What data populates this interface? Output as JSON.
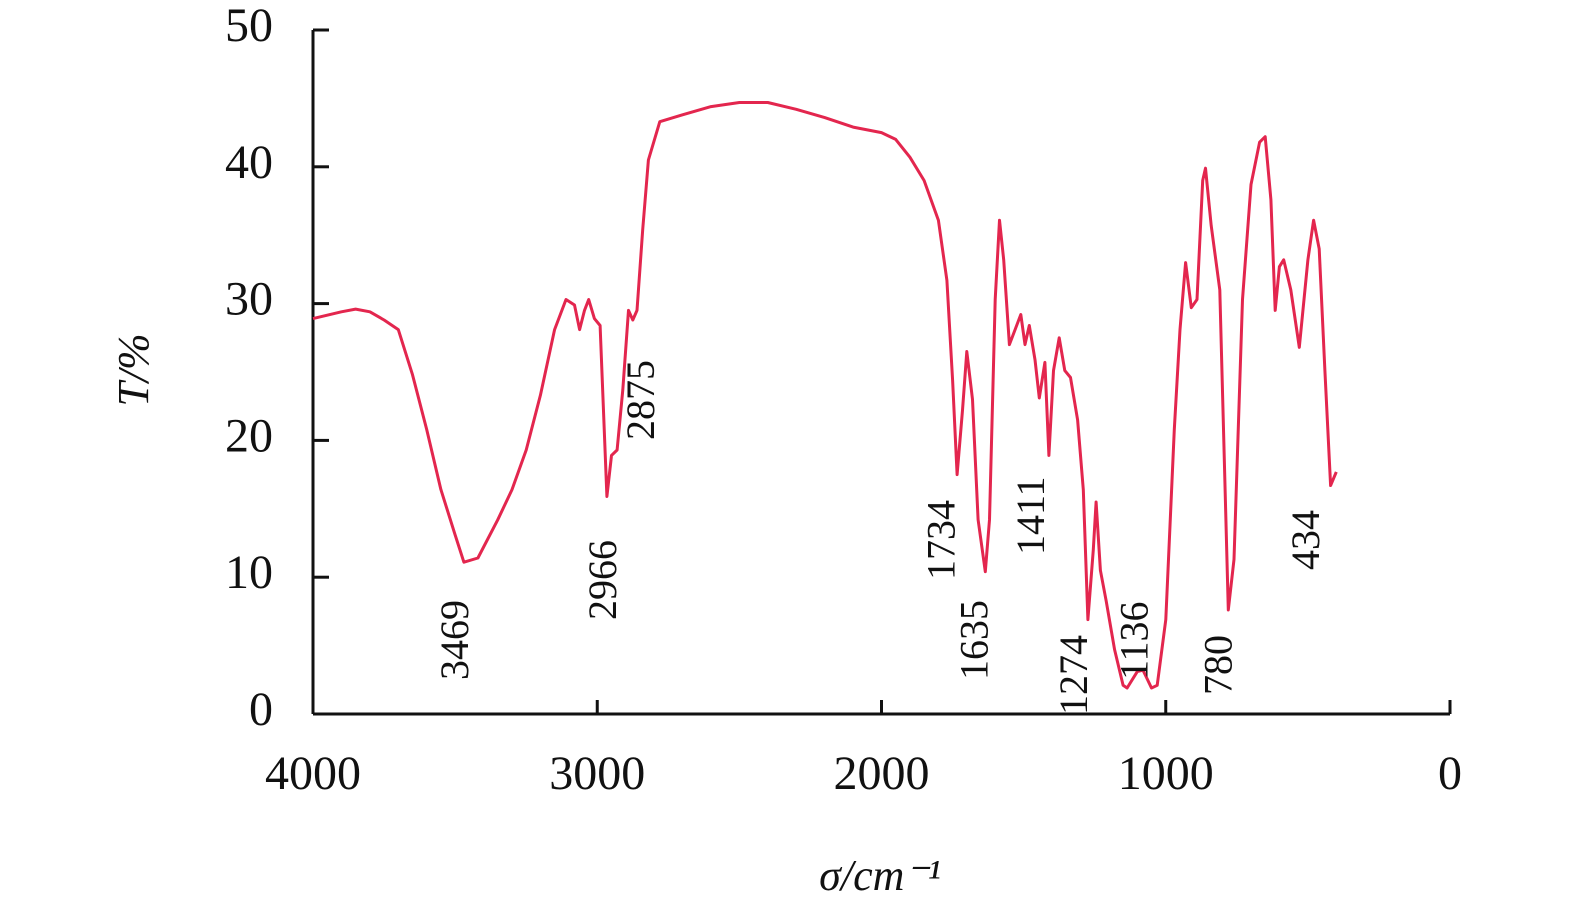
{
  "chart_data": {
    "type": "line",
    "xlabel": "σ/cm⁻¹",
    "ylabel": "T/%",
    "xlim": [
      4000,
      0
    ],
    "xticks": [
      4000,
      3000,
      2000,
      1000,
      0
    ],
    "ylim": [
      0,
      50
    ],
    "yticks": [
      0,
      10,
      20,
      30,
      40,
      50
    ],
    "color": "#e3264e",
    "x": [
      4000,
      3900,
      3850,
      3800,
      3750,
      3700,
      3650,
      3600,
      3550,
      3500,
      3469,
      3420,
      3350,
      3300,
      3250,
      3200,
      3150,
      3110,
      3080,
      3062,
      3045,
      3030,
      3010,
      2990,
      2966,
      2950,
      2930,
      2910,
      2890,
      2875,
      2860,
      2840,
      2820,
      2780,
      2700,
      2600,
      2500,
      2400,
      2300,
      2200,
      2100,
      2000,
      1950,
      1900,
      1850,
      1800,
      1770,
      1750,
      1734,
      1715,
      1700,
      1680,
      1660,
      1635,
      1620,
      1600,
      1585,
      1570,
      1550,
      1530,
      1510,
      1495,
      1480,
      1460,
      1445,
      1425,
      1411,
      1395,
      1375,
      1355,
      1335,
      1310,
      1290,
      1274,
      1255,
      1245,
      1230,
      1210,
      1180,
      1150,
      1136,
      1100,
      1080,
      1050,
      1030,
      1000,
      970,
      950,
      930,
      910,
      890,
      870,
      860,
      840,
      810,
      790,
      780,
      760,
      730,
      700,
      670,
      650,
      630,
      615,
      600,
      585,
      560,
      530,
      500,
      480,
      460,
      440,
      420,
      400
    ],
    "values": [
      28.9,
      29.4,
      29.6,
      29.4,
      28.8,
      28.1,
      24.8,
      20.8,
      16.4,
      13.1,
      11.1,
      11.4,
      14.2,
      16.4,
      19.3,
      23.3,
      28.1,
      30.3,
      29.9,
      28.1,
      29.5,
      30.3,
      28.9,
      28.4,
      15.9,
      18.9,
      19.3,
      23.7,
      29.5,
      28.8,
      29.5,
      35.4,
      40.5,
      43.3,
      43.8,
      44.4,
      44.7,
      44.7,
      44.2,
      43.6,
      42.9,
      42.5,
      42.0,
      40.7,
      39.0,
      36.1,
      31.7,
      24.4,
      17.5,
      22.2,
      26.5,
      23.0,
      14.2,
      10.4,
      14.2,
      30.3,
      36.1,
      33.2,
      27.0,
      28.1,
      29.2,
      27.0,
      28.4,
      25.9,
      23.1,
      25.7,
      18.9,
      25.1,
      27.5,
      25.1,
      24.6,
      21.5,
      16.4,
      6.9,
      12.0,
      15.5,
      10.5,
      8.3,
      4.7,
      2.1,
      1.9,
      3.1,
      3.2,
      1.9,
      2.1,
      6.9,
      20.8,
      28.1,
      33.0,
      29.7,
      30.3,
      39.0,
      39.9,
      35.7,
      31.0,
      15.6,
      7.6,
      11.3,
      30.3,
      38.7,
      41.8,
      42.2,
      37.6,
      29.5,
      32.7,
      33.2,
      31.0,
      26.8,
      33.2,
      36.1,
      34.0,
      25.1,
      16.7,
      17.7
    ],
    "annotations": [
      {
        "x": 3469,
        "text": "3469"
      },
      {
        "x": 2966,
        "text": "2966"
      },
      {
        "x": 2875,
        "text": "2875"
      },
      {
        "x": 1734,
        "text": "1734"
      },
      {
        "x": 1635,
        "text": "1635"
      },
      {
        "x": 1411,
        "text": "1411"
      },
      {
        "x": 1274,
        "text": "1274"
      },
      {
        "x": 1136,
        "text": "1136"
      },
      {
        "x": 780,
        "text": "780"
      },
      {
        "x": 434,
        "text": "434"
      }
    ]
  }
}
